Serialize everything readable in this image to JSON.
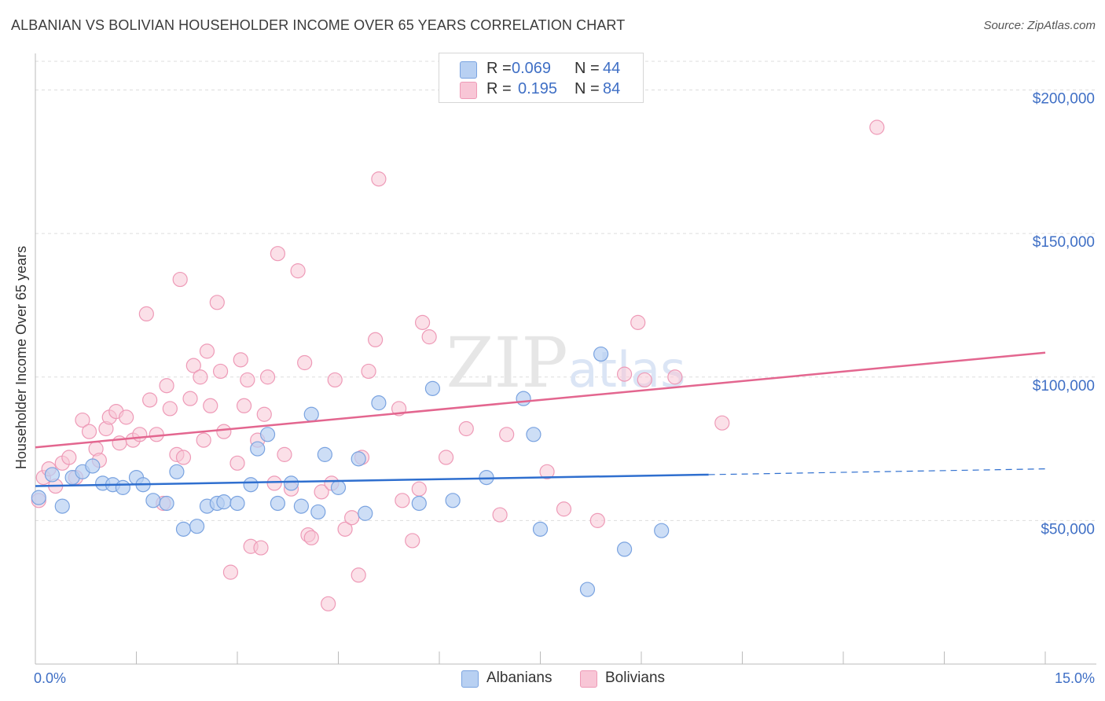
{
  "header": {
    "title": "ALBANIAN VS BOLIVIAN HOUSEHOLDER INCOME OVER 65 YEARS CORRELATION CHART",
    "source": "Source: ZipAtlas.com"
  },
  "legend": {
    "albanians": {
      "r_label": "R =",
      "r_value": "0.069",
      "n_label": "N =",
      "n_value": "44"
    },
    "bolivians": {
      "r_label": "R =",
      "r_value": "0.195",
      "n_label": "N =",
      "n_value": "84"
    },
    "bottom": {
      "albanians": "Albanians",
      "bolivians": "Bolivians"
    }
  },
  "colors": {
    "albanian_fill": "#b8d0f2",
    "albanian_stroke": "#7aa3e0",
    "albanian_line": "#2f6fcf",
    "bolivian_fill": "#f8c6d6",
    "bolivian_stroke": "#ee9ab7",
    "bolivian_line": "#e3668f",
    "tick_text": "#3f6fc5",
    "grid": "#dddddd"
  },
  "chart_data": {
    "type": "scatter",
    "title": "ALBANIAN VS BOLIVIAN HOUSEHOLDER INCOME OVER 65 YEARS CORRELATION CHART",
    "xlabel": "",
    "ylabel": "Householder Income Over 65 years",
    "xlim": [
      0,
      15
    ],
    "ylim": [
      0,
      210000
    ],
    "x_tick_labels": [
      "0.0%",
      "15.0%"
    ],
    "y_ticks": [
      50000,
      100000,
      150000,
      200000
    ],
    "y_tick_labels": [
      "$50,000",
      "$100,000",
      "$150,000",
      "$200,000"
    ],
    "grid": true,
    "legend_position": "top-center",
    "series": [
      {
        "name": "Albanians",
        "r": 0.069,
        "n": 44,
        "trend": {
          "x0": 0,
          "y0": 62000,
          "x1": 15,
          "y1": 68000,
          "solid_until_x": 10
        },
        "points": [
          [
            0.05,
            58000
          ],
          [
            0.25,
            66000
          ],
          [
            0.4,
            55000
          ],
          [
            0.55,
            65000
          ],
          [
            0.7,
            67000
          ],
          [
            0.85,
            69000
          ],
          [
            1.0,
            63000
          ],
          [
            1.15,
            62500
          ],
          [
            1.3,
            61500
          ],
          [
            1.5,
            65000
          ],
          [
            1.6,
            62500
          ],
          [
            1.75,
            57000
          ],
          [
            1.95,
            56000
          ],
          [
            2.1,
            67000
          ],
          [
            2.2,
            47000
          ],
          [
            2.4,
            48000
          ],
          [
            2.55,
            55000
          ],
          [
            2.7,
            56000
          ],
          [
            2.8,
            56500
          ],
          [
            3.0,
            56000
          ],
          [
            3.2,
            62500
          ],
          [
            3.3,
            75000
          ],
          [
            3.45,
            80000
          ],
          [
            3.6,
            56000
          ],
          [
            3.8,
            63000
          ],
          [
            3.95,
            55000
          ],
          [
            4.1,
            87000
          ],
          [
            4.2,
            53000
          ],
          [
            4.3,
            73000
          ],
          [
            4.5,
            61500
          ],
          [
            4.8,
            71500
          ],
          [
            4.9,
            52500
          ],
          [
            5.1,
            91000
          ],
          [
            5.7,
            56000
          ],
          [
            5.9,
            96000
          ],
          [
            6.2,
            57000
          ],
          [
            6.7,
            65000
          ],
          [
            7.25,
            92500
          ],
          [
            7.4,
            80000
          ],
          [
            7.5,
            47000
          ],
          [
            8.2,
            26000
          ],
          [
            8.4,
            108000
          ],
          [
            8.75,
            40000
          ],
          [
            9.3,
            46500
          ]
        ]
      },
      {
        "name": "Bolivians",
        "r": 0.195,
        "n": 84,
        "trend": {
          "x0": 0,
          "y0": 75500,
          "x1": 15,
          "y1": 108500
        },
        "points": [
          [
            0.05,
            57000
          ],
          [
            0.12,
            65000
          ],
          [
            0.2,
            68000
          ],
          [
            0.3,
            62000
          ],
          [
            0.4,
            70000
          ],
          [
            0.5,
            72000
          ],
          [
            0.6,
            65000
          ],
          [
            0.7,
            85000
          ],
          [
            0.8,
            81000
          ],
          [
            0.9,
            75000
          ],
          [
            0.95,
            71000
          ],
          [
            1.05,
            82000
          ],
          [
            1.1,
            86000
          ],
          [
            1.2,
            88000
          ],
          [
            1.25,
            77000
          ],
          [
            1.35,
            86000
          ],
          [
            1.45,
            78000
          ],
          [
            1.55,
            80000
          ],
          [
            1.65,
            122000
          ],
          [
            1.7,
            92000
          ],
          [
            1.8,
            80000
          ],
          [
            1.9,
            56000
          ],
          [
            1.95,
            97000
          ],
          [
            2.0,
            89000
          ],
          [
            2.1,
            73000
          ],
          [
            2.15,
            134000
          ],
          [
            2.2,
            72000
          ],
          [
            2.3,
            92500
          ],
          [
            2.35,
            104000
          ],
          [
            2.45,
            100000
          ],
          [
            2.5,
            78000
          ],
          [
            2.55,
            109000
          ],
          [
            2.6,
            90000
          ],
          [
            2.7,
            126000
          ],
          [
            2.75,
            102000
          ],
          [
            2.8,
            81000
          ],
          [
            2.9,
            32000
          ],
          [
            3.0,
            70000
          ],
          [
            3.05,
            106000
          ],
          [
            3.1,
            90000
          ],
          [
            3.15,
            99000
          ],
          [
            3.2,
            41000
          ],
          [
            3.3,
            78000
          ],
          [
            3.35,
            40500
          ],
          [
            3.4,
            87000
          ],
          [
            3.45,
            100000
          ],
          [
            3.6,
            143000
          ],
          [
            3.7,
            73000
          ],
          [
            3.8,
            61000
          ],
          [
            3.9,
            137000
          ],
          [
            4.0,
            105000
          ],
          [
            4.05,
            45000
          ],
          [
            4.1,
            44000
          ],
          [
            4.25,
            60000
          ],
          [
            4.35,
            21000
          ],
          [
            4.4,
            63000
          ],
          [
            4.45,
            99000
          ],
          [
            4.6,
            47000
          ],
          [
            4.7,
            51000
          ],
          [
            4.8,
            31000
          ],
          [
            4.85,
            72000
          ],
          [
            4.95,
            102000
          ],
          [
            5.05,
            113000
          ],
          [
            5.1,
            169000
          ],
          [
            5.4,
            89000
          ],
          [
            5.6,
            43000
          ],
          [
            5.7,
            61000
          ],
          [
            5.75,
            119000
          ],
          [
            5.85,
            114000
          ],
          [
            6.1,
            72000
          ],
          [
            6.4,
            82000
          ],
          [
            6.9,
            52000
          ],
          [
            7.0,
            80000
          ],
          [
            7.6,
            67000
          ],
          [
            7.85,
            54000
          ],
          [
            8.35,
            50000
          ],
          [
            8.75,
            101000
          ],
          [
            8.95,
            119000
          ],
          [
            9.05,
            99000
          ],
          [
            9.5,
            100000
          ],
          [
            10.2,
            84000
          ],
          [
            12.5,
            187000
          ],
          [
            5.45,
            57000
          ],
          [
            3.55,
            63000
          ]
        ]
      }
    ]
  }
}
